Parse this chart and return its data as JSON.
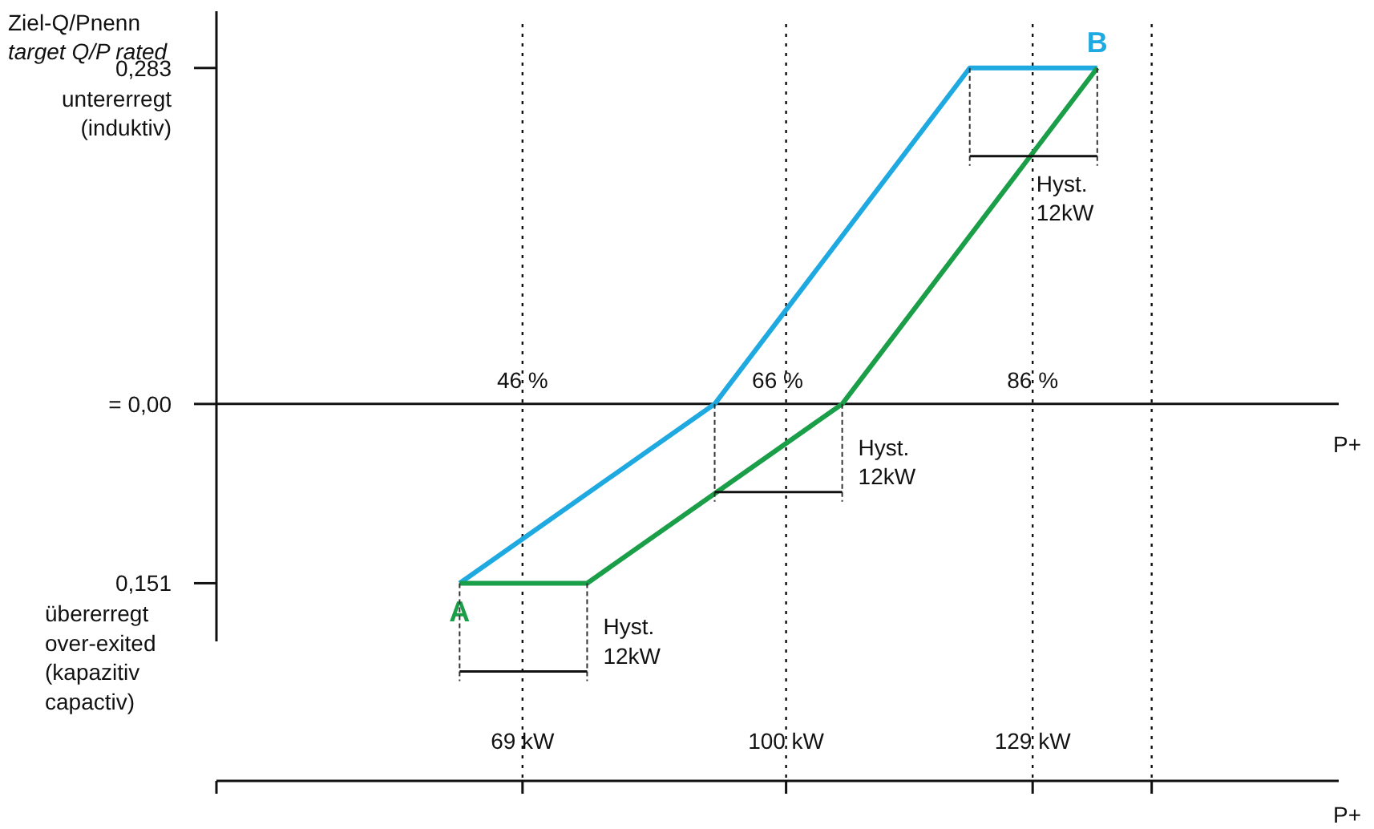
{
  "chart_data": {
    "type": "line",
    "ylabel": "Ziel-Q/Pnenn\ntarget Q/P rated",
    "xlabel": "P+",
    "xlim": [
      33,
      165
    ],
    "ylim": [
      -0.2,
      0.32
    ],
    "xticks": [
      {
        "value": 69,
        "label": "69 kW"
      },
      {
        "value": 100,
        "label": "100 kW"
      },
      {
        "value": 129,
        "label": "129 kW"
      },
      {
        "value": 143,
        "label": null
      }
    ],
    "yticks": [
      {
        "value": 0.283,
        "label": "0,283"
      },
      {
        "value": 0,
        "label": "= 0,00"
      },
      {
        "value": -0.151,
        "label": "0,151"
      }
    ],
    "series": [
      {
        "color": "#1fa9e1",
        "x": [
          61.6,
          91.6,
          121.6,
          136.6
        ],
        "values": [
          -0.151,
          0,
          0.283,
          0.283
        ]
      },
      {
        "color": "#1a9e48",
        "x": [
          61.6,
          76.6,
          106.6,
          136.6
        ],
        "values": [
          -0.151,
          -0.151,
          0,
          0.283
        ]
      }
    ],
    "x2lim": [
      22,
      110
    ],
    "x2ticks": [
      {
        "value": 46,
        "label": "46 %"
      },
      {
        "value": 66,
        "label": "66 %"
      },
      {
        "value": 86,
        "label": "86 %"
      }
    ],
    "ref_lines": [
      {
        "axis": "x",
        "value": 69,
        "line_style": "dotted"
      },
      {
        "axis": "x",
        "value": 100,
        "line_style": "dotted"
      },
      {
        "axis": "x",
        "value": 129,
        "line_style": "dotted"
      },
      {
        "axis": "x",
        "value": 143,
        "line_style": "dotted"
      }
    ],
    "annotations": [
      "untererregt\n(induktiv)",
      "übererregt\nover-exited\n(kapazitiv\ncapactiv)",
      {
        "text": "A",
        "x": 61.6,
        "y": -0.151
      },
      {
        "text": "B",
        "x": 136.6,
        "y": 0.283
      },
      {
        "text": "Hyst.\n12kW",
        "x": 136.6,
        "y": 0.283
      },
      {
        "text": "Hyst.\n12kW",
        "x": 106.6,
        "y": 0
      },
      {
        "text": "Hyst.\n12kW",
        "x": 76.6,
        "y": -0.151
      }
    ]
  }
}
